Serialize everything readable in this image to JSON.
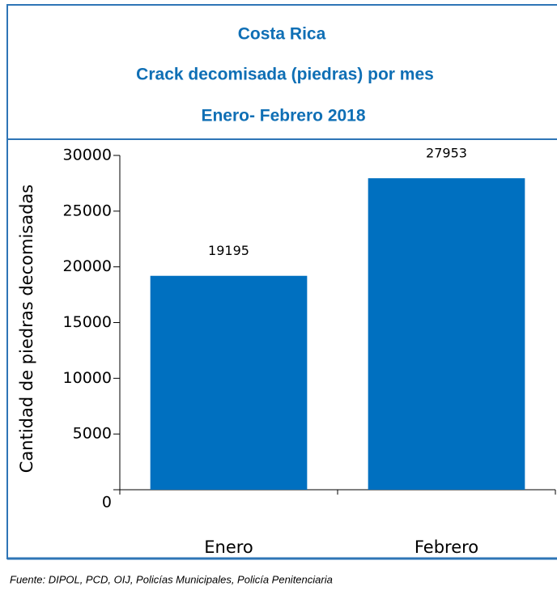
{
  "chart_data": {
    "type": "bar",
    "title_lines": [
      "Costa Rica",
      "Crack decomisada (piedras) por mes",
      "Enero- Febrero 2018"
    ],
    "y_label": "Cantidad de piedras decomisadas",
    "categories": [
      "Enero",
      "Febrero"
    ],
    "values": [
      19195,
      27953
    ],
    "color": "#0070c0",
    "ylim": [
      0,
      30000
    ],
    "yticks": [
      0,
      5000,
      10000,
      15000,
      20000,
      25000,
      30000
    ],
    "source": "Fuente: DIPOL, PCD, OIJ, Policías Municipales, Policía Penitenciaria"
  }
}
